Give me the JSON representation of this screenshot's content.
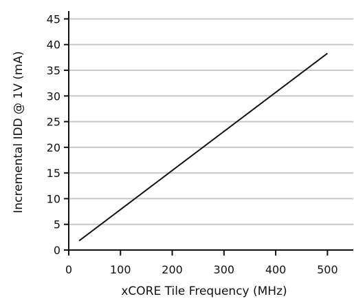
{
  "chart_data": {
    "type": "line",
    "title": "",
    "xlabel": "xCORE Tile Frequency (MHz)",
    "ylabel": "Incremental IDD @ 1V (mA)",
    "xlim": [
      0,
      550
    ],
    "ylim": [
      0,
      46
    ],
    "x_ticks": [
      "0",
      "100",
      "200",
      "300",
      "400",
      "500"
    ],
    "y_ticks": [
      "0",
      "5",
      "10",
      "15",
      "20",
      "25",
      "30",
      "35",
      "40",
      "45"
    ],
    "grid": "horizontal",
    "series": [
      {
        "x": [
          20,
          500
        ],
        "y": [
          1.8,
          38.3
        ],
        "color": "#111111"
      }
    ],
    "colors": {
      "axis": "#111111",
      "grid": "#c8c8c8",
      "line": "#111111"
    }
  }
}
